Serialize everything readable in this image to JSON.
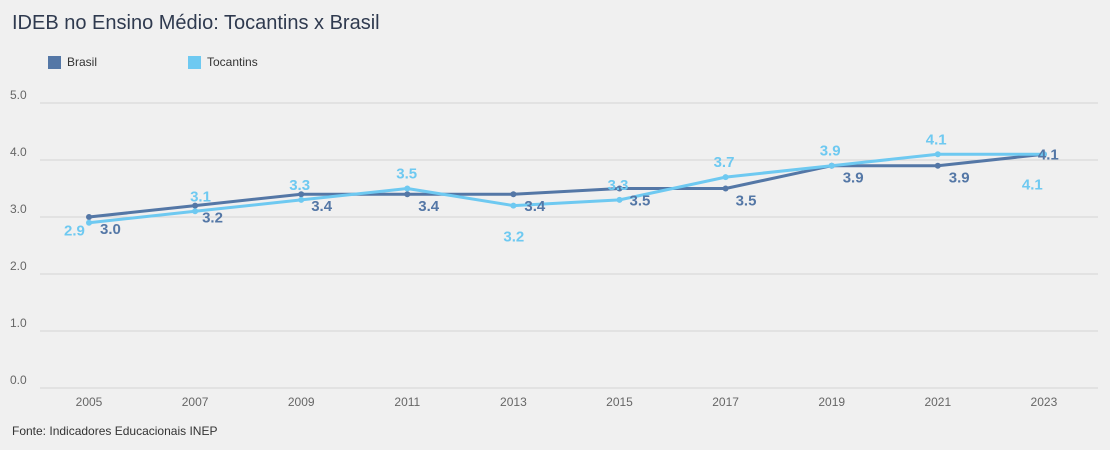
{
  "colors": {
    "brasil": "#5477a6",
    "tocantins": "#6ec9f1",
    "grid": "#d4d4d4",
    "tick": "#666666"
  },
  "chart_data": {
    "type": "line",
    "title": "IDEB no Ensino Médio: Tocantins x Brasil",
    "source": "Fonte: Indicadores Educacionais INEP",
    "x": [
      "2005",
      "2007",
      "2009",
      "2011",
      "2013",
      "2015",
      "2017",
      "2019",
      "2021",
      "2023"
    ],
    "yticks": [
      "0.0",
      "1.0",
      "2.0",
      "3.0",
      "4.0",
      "5.0"
    ],
    "ylim": [
      0,
      5
    ],
    "grid": true,
    "legend_position": "top-left",
    "series": [
      {
        "name": "Brasil",
        "values": [
          3.0,
          3.2,
          3.4,
          3.4,
          3.4,
          3.5,
          3.5,
          3.9,
          3.9,
          4.1
        ],
        "labels": [
          "3.0",
          "3.2",
          "3.4",
          "3.4",
          "3.4",
          "3.5",
          "3.5",
          "3.9",
          "3.9",
          "4.1"
        ]
      },
      {
        "name": "Tocantins",
        "values": [
          2.9,
          3.1,
          3.3,
          3.5,
          3.2,
          3.3,
          3.7,
          3.9,
          4.1,
          4.1
        ],
        "labels": [
          "2.9",
          "3.1",
          "3.3",
          "3.5",
          "3.2",
          "3.3",
          "3.7",
          "3.9",
          "4.1",
          "4.1"
        ]
      }
    ]
  }
}
